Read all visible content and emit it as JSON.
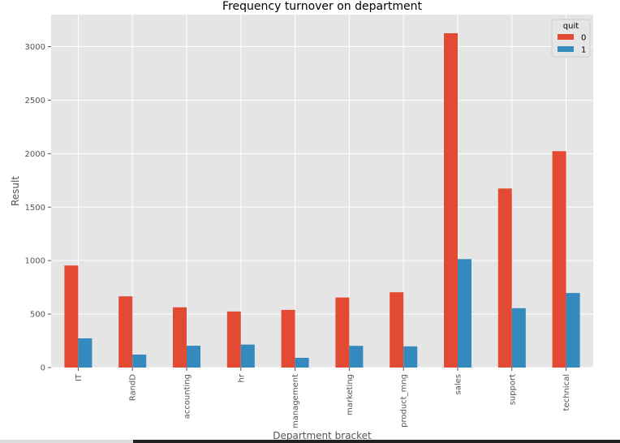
{
  "chart_data": {
    "type": "bar",
    "title": "Frequency turnover on department",
    "xlabel": "Department bracket",
    "ylabel": "Result",
    "categories": [
      "IT",
      "RandD",
      "accounting",
      "hr",
      "management",
      "marketing",
      "product_mng",
      "sales",
      "support",
      "technical"
    ],
    "series": [
      {
        "name": "0",
        "color": "#E24A33",
        "values": [
          954,
          666,
          563,
          524,
          539,
          655,
          704,
          3126,
          1674,
          2023
        ]
      },
      {
        "name": "1",
        "color": "#348ABD",
        "values": [
          273,
          121,
          204,
          215,
          91,
          203,
          198,
          1014,
          555,
          697
        ]
      }
    ],
    "ylim": [
      0,
      3300
    ],
    "yticks": [
      0,
      500,
      1000,
      1500,
      2000,
      2500,
      3000
    ],
    "legend": {
      "title": "quit",
      "placement": "top-right"
    },
    "grid": true,
    "background": "#E5E5E5"
  }
}
